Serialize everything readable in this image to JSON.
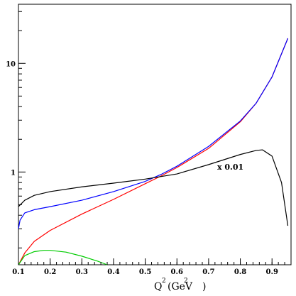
{
  "chart_data": {
    "type": "line",
    "title": "",
    "xlabel": {
      "prefix": "Q",
      "sup": "2",
      "body": "(GeV",
      "sup2": "2",
      "suffix": ")"
    },
    "ylabel": "",
    "xlim": [
      0.1,
      0.96
    ],
    "ylim": [
      0.14,
      35
    ],
    "yscale": "log",
    "grid": false,
    "x_ticks": [
      "0.1",
      "0.2",
      "0.3",
      "0.4",
      "0.5",
      "0.6",
      "0.7",
      "0.8",
      "0.9"
    ],
    "y_ticks": [
      "1",
      "10"
    ],
    "annotation": "x 0.01",
    "series": [
      {
        "color": "#ff0000",
        "x": [
          0.1,
          0.12,
          0.15,
          0.2,
          0.3,
          0.4,
          0.5,
          0.55,
          0.6,
          0.7,
          0.8,
          0.85,
          0.9,
          0.95
        ],
        "y": [
          0.14,
          0.18,
          0.23,
          0.29,
          0.41,
          0.56,
          0.78,
          0.92,
          1.1,
          1.65,
          2.9,
          4.3,
          7.5,
          17
        ]
      },
      {
        "color": "#0000ff",
        "x": [
          0.1,
          0.105,
          0.12,
          0.15,
          0.2,
          0.3,
          0.4,
          0.5,
          0.55,
          0.6,
          0.7,
          0.8,
          0.85,
          0.9,
          0.95
        ],
        "y": [
          0.3,
          0.36,
          0.42,
          0.45,
          0.48,
          0.55,
          0.66,
          0.82,
          0.95,
          1.13,
          1.72,
          2.95,
          4.3,
          7.5,
          17
        ]
      },
      {
        "color": "#000000",
        "x": [
          0.1,
          0.12,
          0.15,
          0.2,
          0.3,
          0.4,
          0.5,
          0.6,
          0.7,
          0.8,
          0.85,
          0.87,
          0.9,
          0.93,
          0.95
        ],
        "y": [
          0.48,
          0.55,
          0.61,
          0.66,
          0.73,
          0.79,
          0.86,
          0.96,
          1.17,
          1.45,
          1.58,
          1.6,
          1.4,
          0.8,
          0.32
        ]
      },
      {
        "color": "#00cc00",
        "x": [
          0.1,
          0.12,
          0.15,
          0.18,
          0.2,
          0.25,
          0.3,
          0.35,
          0.38
        ],
        "y": [
          0.14,
          0.17,
          0.185,
          0.19,
          0.19,
          0.183,
          0.168,
          0.151,
          0.14
        ]
      }
    ]
  }
}
